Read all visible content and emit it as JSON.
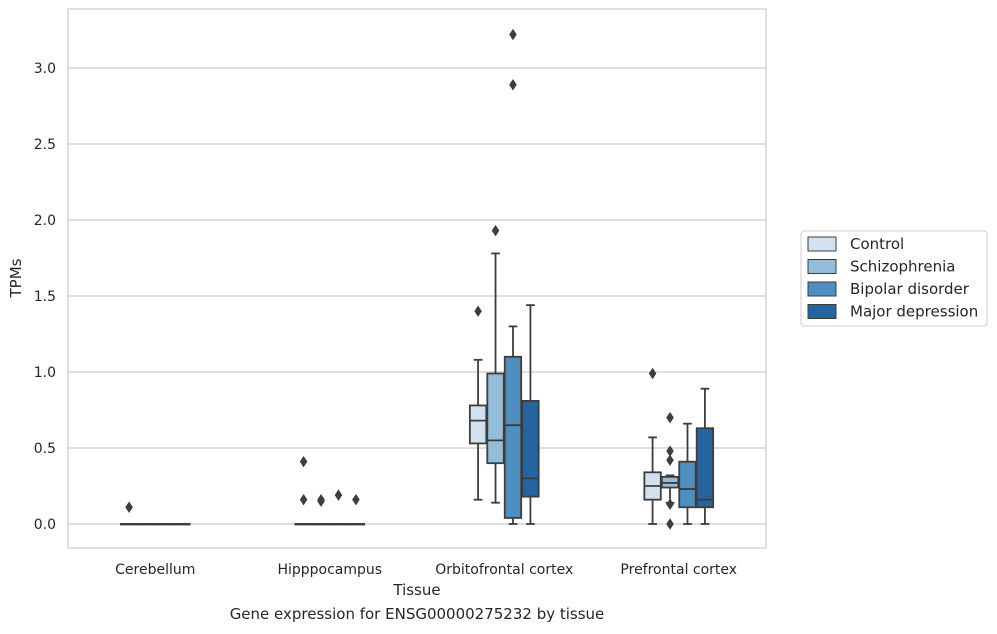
{
  "caption": "Gene expression for ENSG00000275232 by tissue",
  "chart_data": {
    "type": "boxplot",
    "xlabel": "Tissue",
    "ylabel": "TPMs",
    "ylim": [
      -0.16,
      3.4
    ],
    "yticks": [
      0.0,
      0.5,
      1.0,
      1.5,
      2.0,
      2.5,
      3.0
    ],
    "ytick_labels": [
      "0.0",
      "0.5",
      "1.0",
      "1.5",
      "2.0",
      "2.5",
      "3.0"
    ],
    "grid": "horizontal",
    "legend_position": "outside-right",
    "categories": [
      "Cerebellum",
      "Hipppocampus",
      "Orbitofrontal cortex",
      "Prefrontal cortex"
    ],
    "series": [
      {
        "name": "Control",
        "color": "#d1e1f0",
        "boxes": [
          {
            "category": "Cerebellum",
            "whislo": 0,
            "q1": 0,
            "med": 0,
            "q3": 0,
            "whishi": 0,
            "fliers": [
              0.11
            ]
          },
          {
            "category": "Hipppocampus",
            "whislo": 0,
            "q1": 0,
            "med": 0,
            "q3": 0,
            "whishi": 0,
            "fliers": [
              0.41,
              0.16
            ]
          },
          {
            "category": "Orbitofrontal cortex",
            "whislo": 0.16,
            "q1": 0.53,
            "med": 0.68,
            "q3": 0.78,
            "whishi": 1.08,
            "fliers": [
              1.4
            ]
          },
          {
            "category": "Prefrontal cortex",
            "whislo": 0.0,
            "q1": 0.16,
            "med": 0.25,
            "q3": 0.34,
            "whishi": 0.57,
            "fliers": [
              0.99
            ]
          }
        ]
      },
      {
        "name": "Schizophrenia",
        "color": "#93bdd8",
        "boxes": [
          {
            "category": "Cerebellum",
            "whislo": 0,
            "q1": 0,
            "med": 0,
            "q3": 0,
            "whishi": 0,
            "fliers": []
          },
          {
            "category": "Hipppocampus",
            "whislo": 0,
            "q1": 0,
            "med": 0,
            "q3": 0,
            "whishi": 0,
            "fliers": [
              0.15,
              0.16
            ]
          },
          {
            "category": "Orbitofrontal cortex",
            "whislo": 0.14,
            "q1": 0.4,
            "med": 0.55,
            "q3": 0.99,
            "whishi": 1.78,
            "fliers": [
              1.93
            ]
          },
          {
            "category": "Prefrontal cortex",
            "whislo": 0.14,
            "q1": 0.24,
            "med": 0.27,
            "q3": 0.31,
            "whishi": 0.32,
            "fliers": [
              0.7,
              0.48,
              0.42,
              0.13,
              0.0
            ]
          }
        ]
      },
      {
        "name": "Bipolar disorder",
        "color": "#4f8fbf",
        "boxes": [
          {
            "category": "Cerebellum",
            "whislo": 0,
            "q1": 0,
            "med": 0,
            "q3": 0,
            "whishi": 0,
            "fliers": []
          },
          {
            "category": "Hipppocampus",
            "whislo": 0,
            "q1": 0,
            "med": 0,
            "q3": 0,
            "whishi": 0,
            "fliers": [
              0.19
            ]
          },
          {
            "category": "Orbitofrontal cortex",
            "whislo": 0.0,
            "q1": 0.04,
            "med": 0.65,
            "q3": 1.1,
            "whishi": 1.3,
            "fliers": [
              2.89,
              3.22
            ]
          },
          {
            "category": "Prefrontal cortex",
            "whislo": 0.0,
            "q1": 0.11,
            "med": 0.23,
            "q3": 0.41,
            "whishi": 0.66,
            "fliers": []
          }
        ]
      },
      {
        "name": "Major depression",
        "color": "#26649f",
        "boxes": [
          {
            "category": "Cerebellum",
            "whislo": 0,
            "q1": 0,
            "med": 0,
            "q3": 0,
            "whishi": 0,
            "fliers": []
          },
          {
            "category": "Hipppocampus",
            "whislo": 0,
            "q1": 0,
            "med": 0,
            "q3": 0,
            "whishi": 0,
            "fliers": [
              0.16
            ]
          },
          {
            "category": "Orbitofrontal cortex",
            "whislo": 0.0,
            "q1": 0.18,
            "med": 0.3,
            "q3": 0.81,
            "whishi": 1.44,
            "fliers": []
          },
          {
            "category": "Prefrontal cortex",
            "whislo": 0.0,
            "q1": 0.11,
            "med": 0.16,
            "q3": 0.63,
            "whishi": 0.89,
            "fliers": []
          }
        ]
      }
    ]
  }
}
